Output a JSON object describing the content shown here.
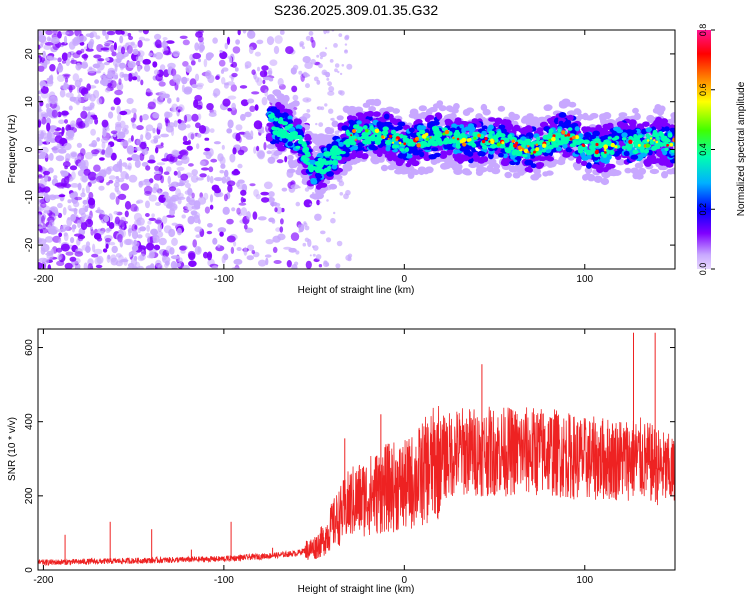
{
  "figure_title": "S236.2025.309.01.35.G32",
  "chart_data": [
    {
      "type": "heatmap",
      "xlabel": "Height of straight line (km)",
      "ylabel": "Frequency (Hz)",
      "xlim": [
        -203,
        150
      ],
      "ylim": [
        -25,
        25
      ],
      "xticks": [
        -200,
        -100,
        0,
        100
      ],
      "yticks": [
        -20,
        -10,
        0,
        10,
        20
      ],
      "colorbar": {
        "label": "Normalized spectral amplitude",
        "range": [
          0.0,
          0.8
        ],
        "ticks": [
          0.0,
          0.2,
          0.4,
          0.6,
          0.8
        ],
        "colormap": [
          "#e8d8ff",
          "#c8a8ff",
          "#7f00ff",
          "#0000ff",
          "#00b0ff",
          "#00ffb0",
          "#40ff00",
          "#ffff00",
          "#ff8000",
          "#ff0000",
          "#ff1493"
        ]
      },
      "series": [
        {
          "name": "noise scatter",
          "x_range": [
            -203,
            -40
          ],
          "y_range": [
            -25,
            25
          ]
        },
        {
          "name": "signal band",
          "x": [
            -75,
            -60,
            -50,
            -40,
            -30,
            -20,
            -10,
            0,
            10,
            20,
            30,
            40,
            50,
            60,
            70,
            80,
            90,
            100,
            110,
            120,
            130,
            140,
            150
          ],
          "y": [
            6,
            3,
            -4,
            -2,
            3,
            3,
            3,
            1,
            2,
            3,
            2,
            2,
            2,
            1,
            0,
            2,
            3,
            1,
            0,
            2,
            1,
            2,
            1
          ]
        }
      ]
    },
    {
      "type": "line",
      "xlabel": "Height of straight line (km)",
      "ylabel": "SNR (10 * v/v)",
      "xlim": [
        -203,
        150
      ],
      "ylim": [
        0,
        650
      ],
      "xticks": [
        -200,
        -100,
        0,
        100
      ],
      "yticks": [
        0,
        200,
        400,
        600
      ],
      "line_color": "#ee2222",
      "series": [
        {
          "name": "SNR",
          "x": [
            -203,
            -150,
            -100,
            -70,
            -60,
            -50,
            -45,
            -40,
            -35,
            -30,
            -25,
            -20,
            -15,
            -10,
            -5,
            0,
            5,
            10,
            20,
            30,
            40,
            50,
            60,
            70,
            80,
            90,
            100,
            110,
            120,
            130,
            140,
            150
          ],
          "y": [
            20,
            25,
            30,
            40,
            45,
            60,
            80,
            120,
            150,
            180,
            190,
            200,
            210,
            220,
            225,
            225,
            240,
            260,
            300,
            320,
            320,
            320,
            320,
            320,
            320,
            310,
            300,
            300,
            300,
            300,
            280,
            260
          ],
          "spikes": [
            {
              "x": -188,
              "y": 95
            },
            {
              "x": -163,
              "y": 130
            },
            {
              "x": -140,
              "y": 110
            },
            {
              "x": -118,
              "y": 55
            },
            {
              "x": -96,
              "y": 130
            },
            {
              "x": -73,
              "y": 60
            },
            {
              "x": -33,
              "y": 355
            },
            {
              "x": -13,
              "y": 420
            },
            {
              "x": 43,
              "y": 555
            },
            {
              "x": 127,
              "y": 640
            },
            {
              "x": 139,
              "y": 640
            }
          ]
        }
      ]
    }
  ]
}
